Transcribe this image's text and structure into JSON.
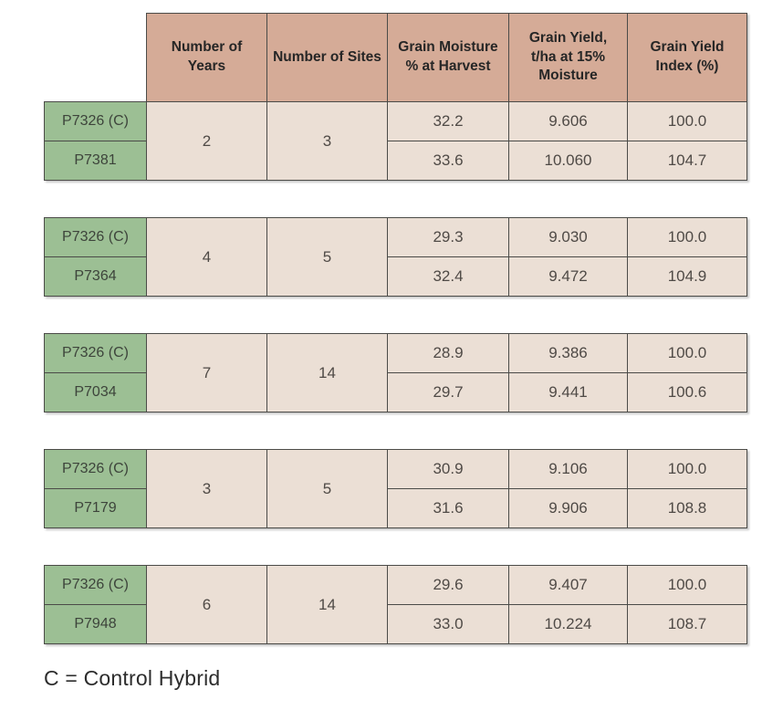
{
  "table": {
    "columns": [
      "Number of Years",
      "Number of Sites",
      "Grain Moisture % at Harvest",
      "Grain Yield, t/ha at 15% Moisture",
      "Grain Yield Index (%)"
    ],
    "groups": [
      {
        "years": "2",
        "sites": "3",
        "rows": [
          {
            "label": "P7326 (C)",
            "moisture": "32.2",
            "yield": "9.606",
            "index": "100.0"
          },
          {
            "label": "P7381",
            "moisture": "33.6",
            "yield": "10.060",
            "index": "104.7"
          }
        ]
      },
      {
        "years": "4",
        "sites": "5",
        "rows": [
          {
            "label": "P7326 (C)",
            "moisture": "29.3",
            "yield": "9.030",
            "index": "100.0"
          },
          {
            "label": "P7364",
            "moisture": "32.4",
            "yield": "9.472",
            "index": "104.9"
          }
        ]
      },
      {
        "years": "7",
        "sites": "14",
        "rows": [
          {
            "label": "P7326 (C)",
            "moisture": "28.9",
            "yield": "9.386",
            "index": "100.0"
          },
          {
            "label": "P7034",
            "moisture": "29.7",
            "yield": "9.441",
            "index": "100.6"
          }
        ]
      },
      {
        "years": "3",
        "sites": "5",
        "rows": [
          {
            "label": "P7326 (C)",
            "moisture": "30.9",
            "yield": "9.106",
            "index": "100.0"
          },
          {
            "label": "P7179",
            "moisture": "31.6",
            "yield": "9.906",
            "index": "108.8"
          }
        ]
      },
      {
        "years": "6",
        "sites": "14",
        "rows": [
          {
            "label": "P7326 (C)",
            "moisture": "29.6",
            "yield": "9.407",
            "index": "100.0"
          },
          {
            "label": "P7948",
            "moisture": "33.0",
            "yield": "10.224",
            "index": "108.7"
          }
        ]
      }
    ],
    "footnote": "C = Control Hybrid"
  },
  "colors": {
    "header_bg": "#d5ab97",
    "row_label_bg": "#9cbf94",
    "cell_bg": "#ebdfd5",
    "border": "#4b4b48",
    "header_text": "#262626",
    "cell_text": "#4f4a46",
    "page_bg": "#ffffff"
  }
}
